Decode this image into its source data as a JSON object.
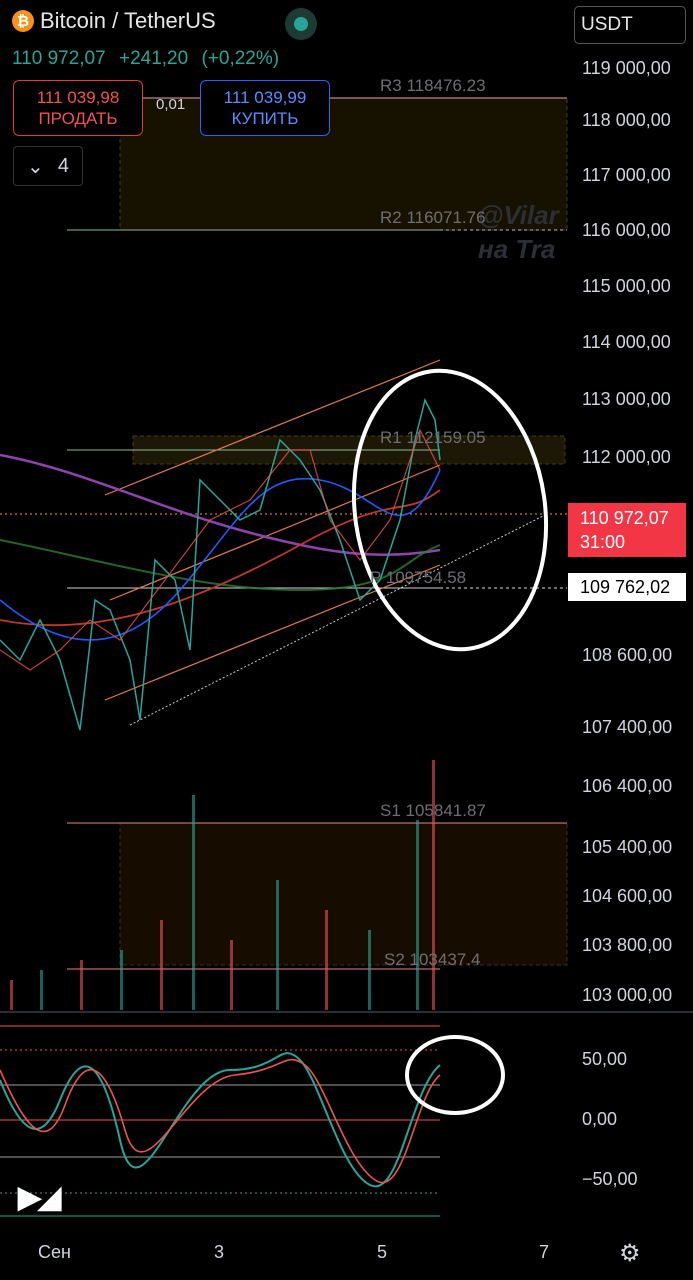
{
  "header": {
    "icon": "bitcoin-icon",
    "pair": "Bitcoin / TetherUS",
    "last_price": "110 972,07",
    "change": "+241,20",
    "change_pct": "(+0,22%)"
  },
  "trade": {
    "sell_price": "111 039,98",
    "sell_label": "ПРОДАТЬ",
    "spread": "0,01",
    "buy_price": "111 039,99",
    "buy_label": "КУПИТЬ"
  },
  "indicators_toggle": {
    "count": "4"
  },
  "currency": "USDT",
  "price_axis": [
    "119 000,00",
    "118 000,00",
    "117 000,00",
    "116 000,00",
    "115 000,00",
    "114 000,00",
    "113 000,00",
    "112 000,00",
    "108 600,00",
    "107 400,00",
    "106 400,00",
    "105 400,00",
    "104 600,00",
    "103 800,00",
    "103 000,00"
  ],
  "current_price_tag": {
    "price": "110 972,07",
    "countdown": "31:00"
  },
  "pivot_tag": "109 762,02",
  "levels": {
    "r3": "R3 118476.23",
    "r2": "R2 116071.76",
    "r1": "R1 112159.05",
    "p": "P 109754.58",
    "s1": "S1 105841.87",
    "s2": "S2 103437.4"
  },
  "watermark": [
    "@Vilar",
    "на Tra"
  ],
  "oscillator_axis": [
    "50,00",
    "0,00",
    "−50,00"
  ],
  "time_axis": [
    "Сен",
    "3",
    "5",
    "7"
  ],
  "colors": {
    "up": "#26a69a",
    "down": "#ef5350",
    "accent_blue": "#2962ff",
    "price_tag": "#f23645"
  }
}
